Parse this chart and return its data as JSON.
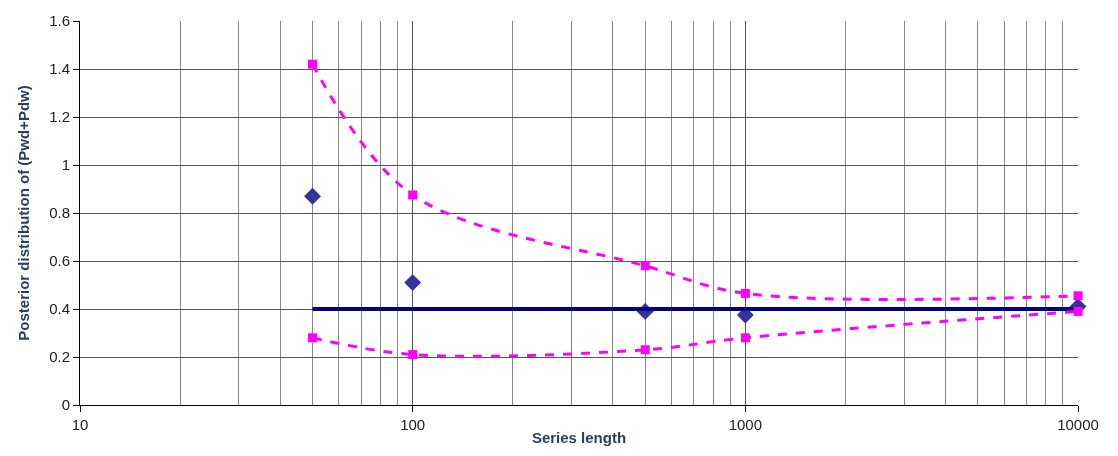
{
  "chart_data": {
    "type": "line",
    "xlabel": "Series length",
    "ylabel": "Posterior distribution of (Pwd+Pdw)",
    "log": "x",
    "grid": true,
    "xlim": [
      10,
      10000
    ],
    "xticks": [
      10,
      100,
      1000,
      10000
    ],
    "ylim": [
      0,
      1.6
    ],
    "yticks": [
      0,
      0.2,
      0.4,
      0.6,
      0.8,
      1,
      1.2,
      1.4,
      1.6
    ],
    "series": [
      {
        "type": "scatter",
        "marker": "diamond",
        "color": "#333399",
        "x": [
          50,
          100,
          500,
          1000,
          10000
        ],
        "values": [
          0.87,
          0.51,
          0.39,
          0.375,
          0.41
        ]
      },
      {
        "marker": "none",
        "line_style": "solid",
        "color": "#000080",
        "x": [
          50,
          10000
        ],
        "values": [
          0.4,
          0.4
        ]
      },
      {
        "marker": "square",
        "line_style": "dashed",
        "color": "#ff00ff",
        "x": [
          50,
          100,
          500,
          1000,
          10000
        ],
        "values": [
          1.42,
          0.875,
          0.58,
          0.465,
          0.455
        ]
      },
      {
        "marker": "square",
        "line_style": "dashed",
        "color": "#ff00ff",
        "x": [
          50,
          100,
          500,
          1000,
          10000
        ],
        "values": [
          0.28,
          0.21,
          0.23,
          0.28,
          0.39
        ]
      }
    ]
  }
}
